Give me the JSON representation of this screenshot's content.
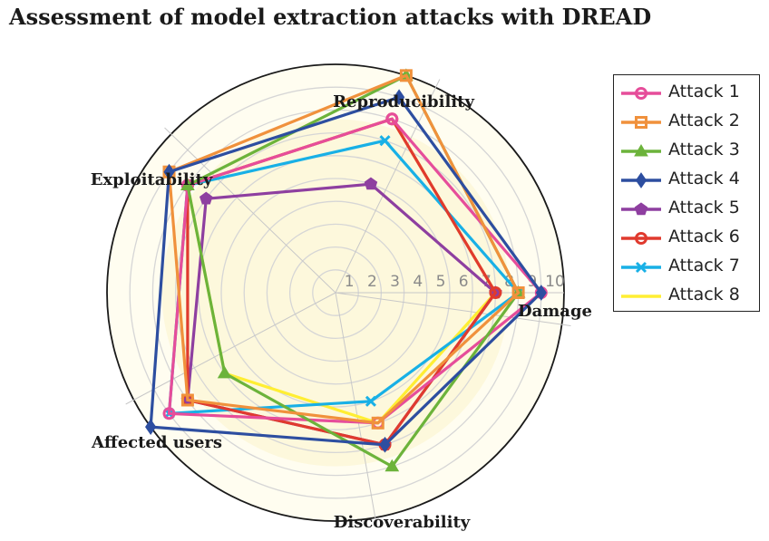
{
  "title": "Assessment of model extraction attacks with DREAD",
  "chart_data": {
    "type": "radar",
    "title": "Assessment of model extraction attacks with DREAD",
    "axes": [
      "Damage",
      "Reproducibility",
      "Exploitability",
      "Affected users",
      "Discoverability"
    ],
    "radial_ticks": [
      "1",
      "2",
      "3",
      "4",
      "5",
      "6",
      "7",
      "8",
      "9",
      "10"
    ],
    "rlim": [
      0,
      10
    ],
    "legend_position": "right",
    "series": [
      {
        "name": "Attack 1",
        "color": "#e64d9a",
        "marker": "circle",
        "values": [
          9,
          8,
          8,
          9,
          6
        ]
      },
      {
        "name": "Attack 2",
        "color": "#f0913c",
        "marker": "square",
        "values": [
          8,
          10,
          9,
          8,
          6
        ]
      },
      {
        "name": "Attack 3",
        "color": "#6cb33b",
        "marker": "triangle",
        "values": [
          8,
          10,
          8,
          6,
          8
        ]
      },
      {
        "name": "Attack 4",
        "color": "#2d4ea0",
        "marker": "diamond",
        "values": [
          9,
          9,
          9,
          10,
          7
        ]
      },
      {
        "name": "Attack 5",
        "color": "#8e3fa0",
        "marker": "pentagon",
        "values": [
          7,
          5,
          7,
          8,
          7
        ]
      },
      {
        "name": "Attack 6",
        "color": "#e03a2e",
        "marker": "circle",
        "values": [
          7,
          8,
          8,
          8,
          7
        ]
      },
      {
        "name": "Attack 7",
        "color": "#18b0e6",
        "marker": "cross",
        "values": [
          8,
          7,
          8,
          9,
          5
        ]
      },
      {
        "name": "Attack 8",
        "color": "#ffee33",
        "marker": "none",
        "values": [
          7,
          8,
          8,
          6,
          6
        ]
      }
    ]
  }
}
